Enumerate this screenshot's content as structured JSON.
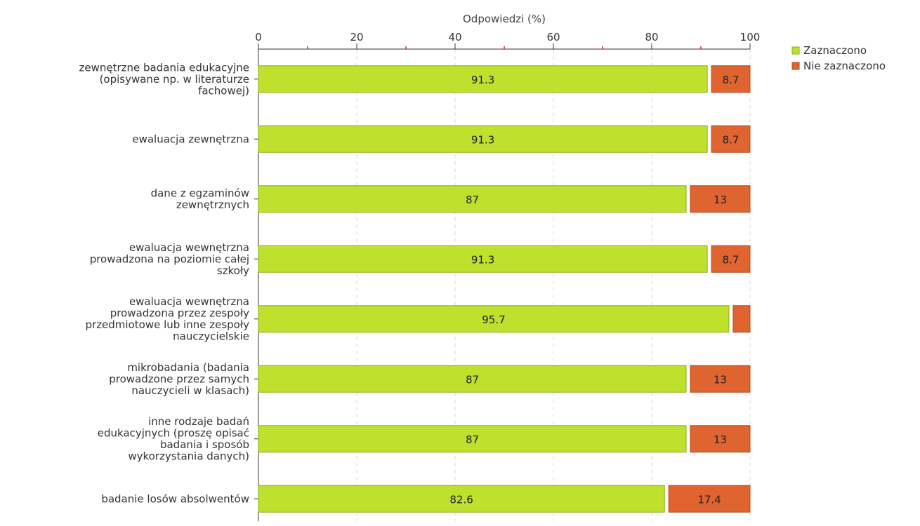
{
  "chart_data": {
    "type": "bar",
    "orientation": "horizontal",
    "stacked": true,
    "xlabel": "Odpowiedzi (%)",
    "xlim": [
      0,
      100
    ],
    "xticks": [
      "0",
      "20",
      "40",
      "60",
      "80",
      "100"
    ],
    "grid": true,
    "legend_position": "top-right",
    "categories": [
      [
        "zewnętrzne badania edukacyjne",
        "(opisywane np. w literaturze",
        "fachowej)"
      ],
      [
        "ewaluacja zewnętrzna"
      ],
      [
        "dane z egzaminów",
        "zewnętrznych"
      ],
      [
        "ewaluacja wewnętrzna",
        "prowadzona na poziomie całej",
        "szkoły"
      ],
      [
        "ewaluacja wewnętrzna",
        "prowadzona przez zespoły",
        "przedmiotowe lub inne zespoły",
        "nauczycielskie"
      ],
      [
        "mikrobadania (badania",
        "prowadzone przez samych",
        "nauczycieli w klasach)"
      ],
      [
        "inne rodzaje badań",
        "edukacyjnych (proszę opisać",
        "badania i sposób",
        "wykorzystania danych)"
      ],
      [
        "badanie losów absolwentów"
      ]
    ],
    "series": [
      {
        "name": "Zaznaczono",
        "color": "#bfe02c",
        "stroke": "#8aae16",
        "values": [
          91.3,
          91.3,
          87,
          91.3,
          95.7,
          87,
          87,
          82.6
        ],
        "labels": [
          "91.3",
          "91.3",
          "87",
          "91.3",
          "95.7",
          "87",
          "87",
          "82.6"
        ]
      },
      {
        "name": "Nie zaznaczono",
        "color": "#e06430",
        "stroke": "#b04818",
        "values": [
          8.7,
          8.7,
          13,
          8.7,
          4.3,
          13,
          13,
          17.4
        ],
        "labels": [
          "8.7",
          "8.7",
          "13",
          "8.7",
          "",
          "13",
          "13",
          "17.4"
        ]
      }
    ]
  }
}
